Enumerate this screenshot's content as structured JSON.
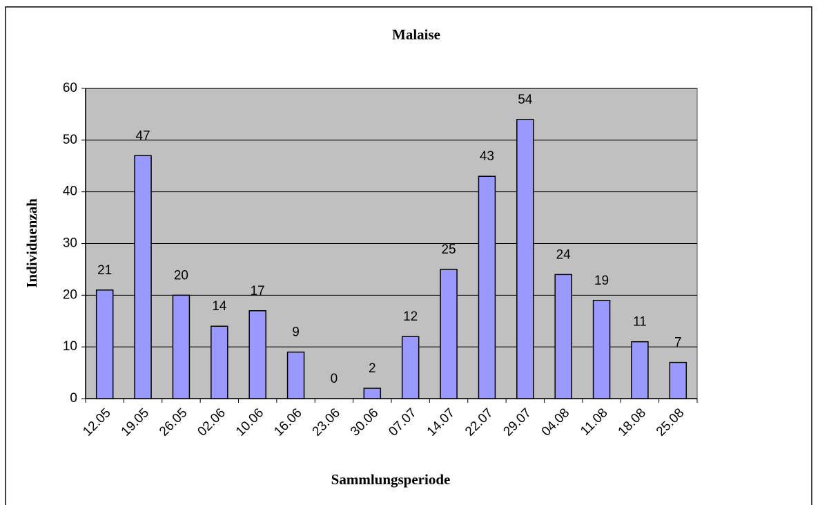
{
  "chart_data": {
    "type": "bar",
    "title": "Malaise",
    "x_label": "Sammlungsperiode",
    "y_label": "Individuenzah",
    "categories": [
      "12.05",
      "19.05",
      "26.05",
      "02.06",
      "10.06",
      "16.06",
      "23.06",
      "30.06",
      "07.07",
      "14.07",
      "22.07",
      "29.07",
      "04.08",
      "11.08",
      "18.08",
      "25.08"
    ],
    "values": [
      21,
      47,
      20,
      14,
      17,
      9,
      0,
      2,
      12,
      25,
      43,
      54,
      24,
      19,
      11,
      7
    ],
    "color": "#9999ff",
    "plot_background": "#c0c0c0",
    "ylim": [
      0,
      60
    ],
    "yticks": [
      0,
      10,
      20,
      30,
      40,
      50,
      60
    ],
    "grid": true
  }
}
